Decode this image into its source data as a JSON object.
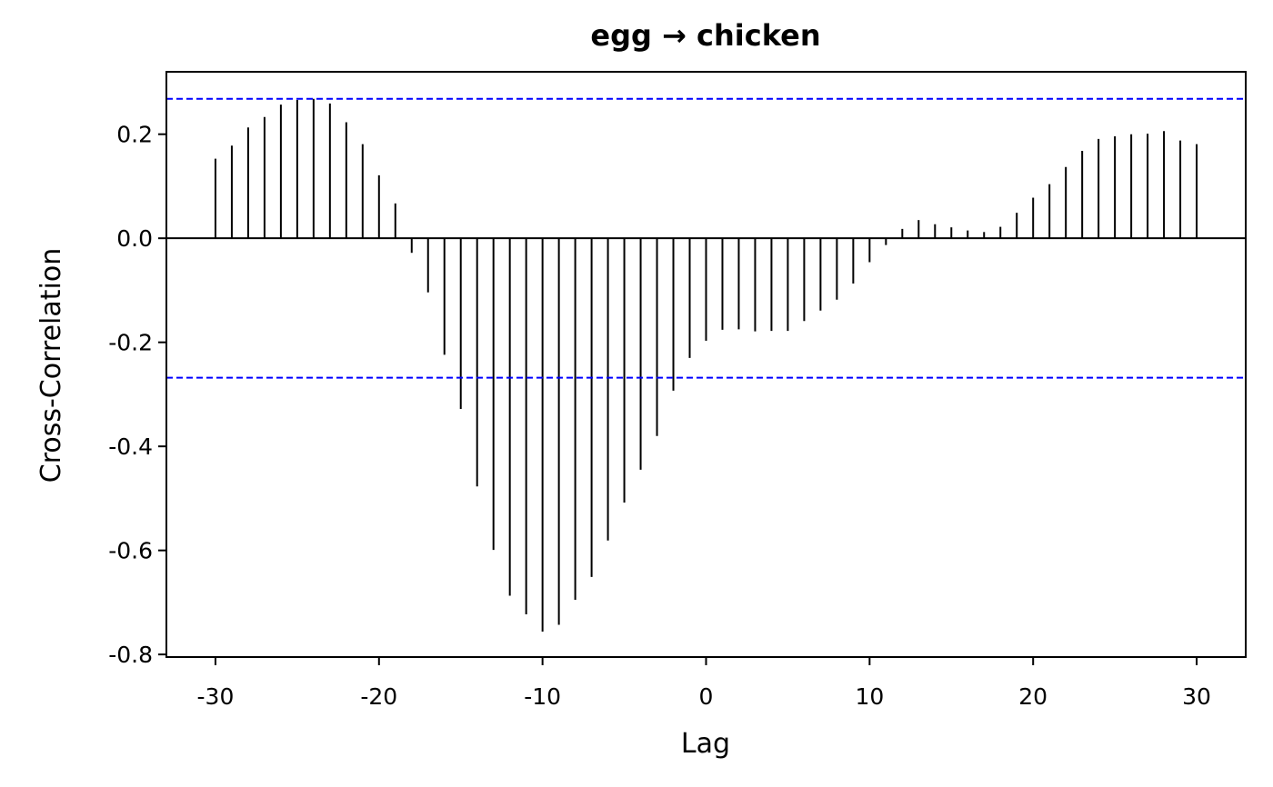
{
  "chart_data": {
    "type": "bar",
    "subtype": "cross-correlation stem plot",
    "title": "egg → chicken",
    "xlabel": "Lag",
    "ylabel": "Cross-Correlation",
    "xlim": [
      -33,
      33
    ],
    "ylim": [
      -0.805,
      0.32
    ],
    "x_ticks": [
      -30,
      -20,
      -10,
      0,
      10,
      20,
      30
    ],
    "x_tick_labels": [
      "-30",
      "-20",
      "-10",
      "0",
      "10",
      "20",
      "30"
    ],
    "y_ticks": [
      0.2,
      0.0,
      -0.2,
      -0.4,
      -0.6,
      -0.8
    ],
    "y_tick_labels": [
      "0.2",
      "0.0",
      "-0.2",
      "-0.4",
      "-0.6",
      "-0.8"
    ],
    "grid": false,
    "confidence_bounds": [
      0.268,
      -0.268
    ],
    "colors": {
      "stems": "#000000",
      "bounds": "#0000ff",
      "zero_line": "#000000"
    },
    "x": [
      -30,
      -29,
      -28,
      -27,
      -26,
      -25,
      -24,
      -23,
      -22,
      -21,
      -20,
      -19,
      -18,
      -17,
      -16,
      -15,
      -14,
      -13,
      -12,
      -11,
      -10,
      -9,
      -8,
      -7,
      -6,
      -5,
      -4,
      -3,
      -2,
      -1,
      0,
      1,
      2,
      3,
      4,
      5,
      6,
      7,
      8,
      9,
      10,
      11,
      12,
      13,
      14,
      15,
      16,
      17,
      18,
      19,
      20,
      21,
      22,
      23,
      24,
      25,
      26,
      27,
      28,
      29,
      30
    ],
    "values": [
      0.153,
      0.178,
      0.213,
      0.233,
      0.257,
      0.266,
      0.268,
      0.259,
      0.223,
      0.181,
      0.121,
      0.067,
      -0.028,
      -0.104,
      -0.224,
      -0.328,
      -0.477,
      -0.599,
      -0.687,
      -0.723,
      -0.756,
      -0.743,
      -0.695,
      -0.651,
      -0.581,
      -0.508,
      -0.445,
      -0.38,
      -0.293,
      -0.23,
      -0.197,
      -0.176,
      -0.175,
      -0.179,
      -0.178,
      -0.178,
      -0.159,
      -0.139,
      -0.118,
      -0.087,
      -0.046,
      -0.013,
      0.018,
      0.035,
      0.027,
      0.021,
      0.015,
      0.012,
      0.022,
      0.049,
      0.078,
      0.104,
      0.137,
      0.168,
      0.191,
      0.196,
      0.2,
      0.201,
      0.206,
      0.188,
      0.181
    ]
  }
}
